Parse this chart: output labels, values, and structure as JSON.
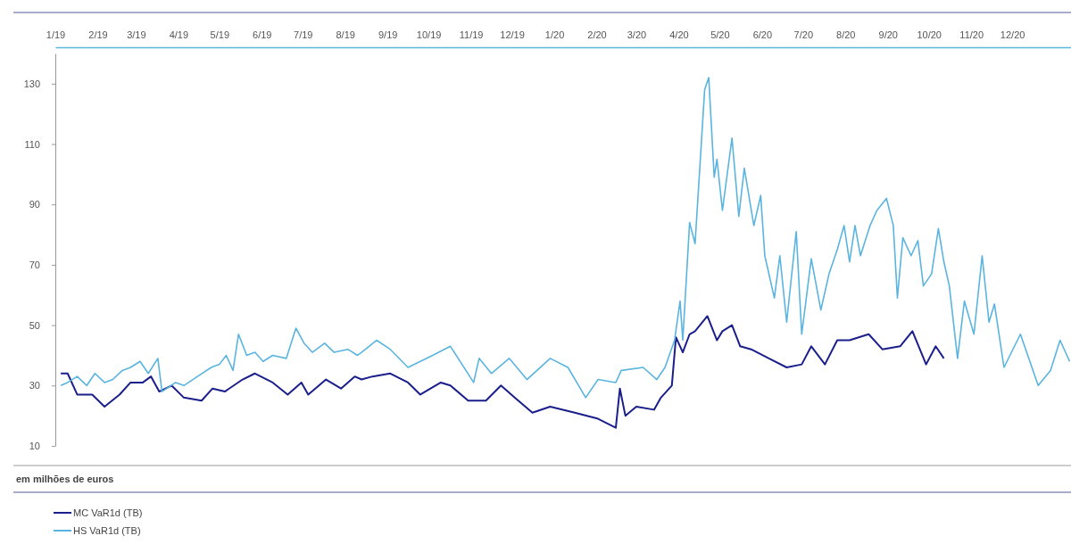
{
  "chart_data": {
    "type": "line",
    "ylabel": "em milhões de euros",
    "xlim": [
      "2019-01-01",
      "2021-01-13"
    ],
    "ylim": [
      10,
      140
    ],
    "yticks": [
      10,
      30,
      50,
      70,
      90,
      110,
      130
    ],
    "xticks": [
      {
        "value": "2019-01-01",
        "label": "1/19"
      },
      {
        "value": "2019-02-01",
        "label": "2/19"
      },
      {
        "value": "2019-03-01",
        "label": "3/19"
      },
      {
        "value": "2019-04-01",
        "label": "4/19"
      },
      {
        "value": "2019-05-01",
        "label": "5/19"
      },
      {
        "value": "2019-06-01",
        "label": "6/19"
      },
      {
        "value": "2019-07-01",
        "label": "7/19"
      },
      {
        "value": "2019-08-01",
        "label": "8/19"
      },
      {
        "value": "2019-09-01",
        "label": "9/19"
      },
      {
        "value": "2019-10-01",
        "label": "10/19"
      },
      {
        "value": "2019-11-01",
        "label": "11/19"
      },
      {
        "value": "2019-12-01",
        "label": "12/19"
      },
      {
        "value": "2020-01-01",
        "label": "1/20"
      },
      {
        "value": "2020-02-01",
        "label": "2/20"
      },
      {
        "value": "2020-03-01",
        "label": "3/20"
      },
      {
        "value": "2020-04-01",
        "label": "4/20"
      },
      {
        "value": "2020-05-01",
        "label": "5/20"
      },
      {
        "value": "2020-06-01",
        "label": "6/20"
      },
      {
        "value": "2020-07-01",
        "label": "7/20"
      },
      {
        "value": "2020-08-01",
        "label": "8/20"
      },
      {
        "value": "2020-09-01",
        "label": "9/20"
      },
      {
        "value": "2020-10-01",
        "label": "10/20"
      },
      {
        "value": "2020-11-01",
        "label": "11/20"
      },
      {
        "value": "2020-12-01",
        "label": "12/20"
      }
    ],
    "legend": "bottom left",
    "grid": false,
    "marker": "none",
    "line_style": "solid",
    "series": [
      {
        "name": "MC VaR1d (TB)",
        "color": "#1a1f8c",
        "x": [
          "2019-01-05",
          "2019-01-10",
          "2019-01-17",
          "2019-01-28",
          "2019-02-06",
          "2019-02-17",
          "2019-02-25",
          "2019-03-06",
          "2019-03-12",
          "2019-03-18",
          "2019-03-27",
          "2019-04-05",
          "2019-04-18",
          "2019-04-26",
          "2019-05-05",
          "2019-05-18",
          "2019-05-27",
          "2019-06-09",
          "2019-06-20",
          "2019-06-30",
          "2019-07-05",
          "2019-07-18",
          "2019-07-29",
          "2019-08-08",
          "2019-08-13",
          "2019-08-21",
          "2019-09-03",
          "2019-09-16",
          "2019-09-25",
          "2019-10-10",
          "2019-10-17",
          "2019-10-30",
          "2019-11-12",
          "2019-11-23",
          "2019-12-03",
          "2019-12-16",
          "2019-12-29",
          "2020-01-16",
          "2020-02-02",
          "2020-02-15",
          "2020-02-18",
          "2020-02-22",
          "2020-03-01",
          "2020-03-14",
          "2020-03-19",
          "2020-03-27",
          "2020-03-30",
          "2020-04-04",
          "2020-04-09",
          "2020-04-13",
          "2020-04-22",
          "2020-04-29",
          "2020-05-03",
          "2020-05-10",
          "2020-05-16",
          "2020-05-24",
          "2020-06-06",
          "2020-06-19",
          "2020-06-30",
          "2020-07-07",
          "2020-07-17",
          "2020-07-26",
          "2020-08-04",
          "2020-08-18",
          "2020-08-28",
          "2020-09-10",
          "2020-09-19",
          "2020-09-29",
          "2020-10-06",
          "2020-10-12"
        ],
        "values": [
          34,
          34,
          27,
          27,
          23,
          27,
          31,
          31,
          33,
          28,
          30,
          26,
          25,
          29,
          28,
          32,
          34,
          31,
          27,
          31,
          27,
          32,
          29,
          33,
          32,
          33,
          34,
          31,
          27,
          31,
          30,
          25,
          25,
          30,
          26,
          21,
          23,
          21,
          19,
          16,
          29,
          20,
          23,
          22,
          26,
          30,
          46,
          41,
          47,
          48,
          53,
          45,
          48,
          50,
          43,
          42,
          39,
          36,
          37,
          43,
          37,
          45,
          45,
          47,
          42,
          43,
          48,
          37,
          43,
          39
        ]
      },
      {
        "name": "HS VaR1d (TB)",
        "color": "#5ab4e0",
        "x": [
          "2019-01-05",
          "2019-01-10",
          "2019-01-17",
          "2019-01-24",
          "2019-01-30",
          "2019-02-06",
          "2019-02-12",
          "2019-02-19",
          "2019-02-25",
          "2019-03-04",
          "2019-03-10",
          "2019-03-17",
          "2019-03-20",
          "2019-03-30",
          "2019-04-05",
          "2019-04-15",
          "2019-04-25",
          "2019-05-01",
          "2019-05-06",
          "2019-05-11",
          "2019-05-15",
          "2019-05-21",
          "2019-05-27",
          "2019-06-02",
          "2019-06-09",
          "2019-06-19",
          "2019-06-26",
          "2019-07-02",
          "2019-07-08",
          "2019-07-17",
          "2019-07-24",
          "2019-08-03",
          "2019-08-10",
          "2019-08-13",
          "2019-08-24",
          "2019-09-03",
          "2019-09-16",
          "2019-10-04",
          "2019-10-17",
          "2019-11-03",
          "2019-11-07",
          "2019-11-16",
          "2019-11-29",
          "2019-12-12",
          "2019-12-29",
          "2020-01-11",
          "2020-01-24",
          "2020-02-02",
          "2020-02-15",
          "2020-02-19",
          "2020-03-06",
          "2020-03-16",
          "2020-03-22",
          "2020-03-29",
          "2020-04-02",
          "2020-04-04",
          "2020-04-09",
          "2020-04-13",
          "2020-04-20",
          "2020-04-23",
          "2020-04-27",
          "2020-04-29",
          "2020-05-03",
          "2020-05-10",
          "2020-05-15",
          "2020-05-19",
          "2020-05-26",
          "2020-05-31",
          "2020-06-03",
          "2020-06-10",
          "2020-06-14",
          "2020-06-19",
          "2020-06-26",
          "2020-06-30",
          "2020-07-07",
          "2020-07-14",
          "2020-07-20",
          "2020-07-26",
          "2020-07-31",
          "2020-08-04",
          "2020-08-08",
          "2020-08-12",
          "2020-08-19",
          "2020-08-24",
          "2020-08-31",
          "2020-09-05",
          "2020-09-08",
          "2020-09-12",
          "2020-09-18",
          "2020-09-23",
          "2020-09-27",
          "2020-10-03",
          "2020-10-08",
          "2020-10-12",
          "2020-10-16",
          "2020-10-22",
          "2020-10-27",
          "2020-11-03",
          "2020-11-09",
          "2020-11-14",
          "2020-11-18",
          "2020-11-25",
          "2020-12-07",
          "2020-12-20",
          "2020-12-29",
          "2021-01-05",
          "2021-01-12"
        ],
        "values": [
          30,
          31,
          33,
          30,
          34,
          31,
          32,
          35,
          36,
          38,
          34,
          39,
          28,
          31,
          30,
          33,
          36,
          37,
          40,
          35,
          47,
          40,
          41,
          38,
          40,
          39,
          49,
          44,
          41,
          44,
          41,
          42,
          40,
          41,
          45,
          42,
          36,
          40,
          43,
          31,
          39,
          34,
          39,
          32,
          39,
          36,
          26,
          32,
          31,
          35,
          36,
          32,
          36,
          45,
          58,
          45,
          84,
          77,
          128,
          132,
          99,
          105,
          88,
          112,
          86,
          102,
          83,
          93,
          73,
          59,
          73,
          51,
          81,
          47,
          72,
          55,
          67,
          75,
          83,
          71,
          83,
          73,
          83,
          88,
          92,
          83,
          59,
          79,
          73,
          78,
          63,
          67,
          82,
          71,
          63,
          39,
          58,
          47,
          73,
          51,
          57,
          36,
          47,
          30,
          35,
          45,
          38
        ]
      }
    ]
  }
}
